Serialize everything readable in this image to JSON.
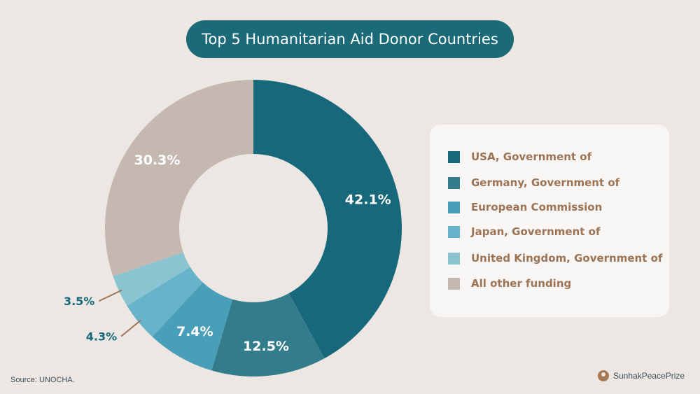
{
  "title": "Top 5 Humanitarian Aid Donor Countries",
  "source": "Source: UNOCHA.",
  "brand": "SunhakPeacePrize",
  "chart_data": {
    "type": "pie",
    "variant": "donut",
    "title": "Top 5 Humanitarian Aid Donor Countries",
    "unit": "%",
    "legend_position": "right",
    "series": [
      {
        "name": "USA, Government of",
        "value": 42.1,
        "label": "42.1%",
        "color": "#17687a"
      },
      {
        "name": "Germany, Government of",
        "value": 12.5,
        "label": "12.5%",
        "color": "#327c8b"
      },
      {
        "name": "European Commission",
        "value": 7.4,
        "label": "7.4%",
        "color": "#4a9fb8"
      },
      {
        "name": "Japan, Government of",
        "value": 4.3,
        "label": "4.3%",
        "color": "#67b3c9"
      },
      {
        "name": "United Kingdom, Government of",
        "value": 3.5,
        "label": "3.5%",
        "color": "#8ac4d0"
      },
      {
        "name": "All other funding",
        "value": 30.3,
        "label": "30.3%",
        "color": "#c5b8b0"
      }
    ]
  }
}
